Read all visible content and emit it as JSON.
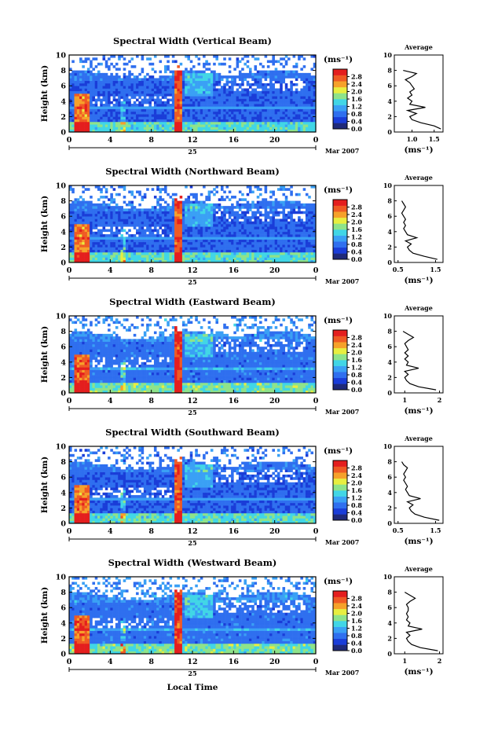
{
  "figure": {
    "xlabel_bottom": "Local Time",
    "date_day": "25",
    "date_month": "Mar 2007",
    "avg_title": "Average",
    "units": "(ms⁻¹)"
  },
  "colorbar": {
    "ticks": [
      "2.8",
      "2.4",
      "2.0",
      "1.6",
      "1.2",
      "0.8",
      "0.4",
      "0.0"
    ],
    "range": [
      0.0,
      3.2
    ],
    "colors": [
      "#1f2a7a",
      "#1a3dd8",
      "#2f6fef",
      "#3aa0f5",
      "#41d6e6",
      "#8ee38a",
      "#e8ee40",
      "#f6a12a",
      "#ef5a24",
      "#e41e1e"
    ]
  },
  "chart_data": [
    {
      "type": "heatmap",
      "title": "Spectral Width (Vertical Beam)",
      "ylabel": "Height (km)",
      "xlim": [
        0,
        24
      ],
      "ylim": [
        0,
        10
      ],
      "xticks": [
        "0",
        "4",
        "8",
        "12",
        "16",
        "20",
        "0"
      ],
      "yticks": [
        "10",
        "8",
        "6",
        "4",
        "2",
        "0"
      ],
      "average": {
        "xticks": [
          "1.0",
          "1.5"
        ],
        "xlim": [
          0.6,
          1.7
        ],
        "profile": [
          [
            1.65,
            0.4
          ],
          [
            1.5,
            0.8
          ],
          [
            1.2,
            1.2
          ],
          [
            1.0,
            1.6
          ],
          [
            0.95,
            2.0
          ],
          [
            1.1,
            2.4
          ],
          [
            0.9,
            2.8
          ],
          [
            1.3,
            3.2
          ],
          [
            0.95,
            3.6
          ],
          [
            1.0,
            4.0
          ],
          [
            0.9,
            4.4
          ],
          [
            1.0,
            4.8
          ],
          [
            0.95,
            5.2
          ],
          [
            1.05,
            5.6
          ],
          [
            1.0,
            6.0
          ],
          [
            0.95,
            6.4
          ],
          [
            0.85,
            6.8
          ],
          [
            1.0,
            7.2
          ],
          [
            1.1,
            7.6
          ],
          [
            0.8,
            8.0
          ]
        ]
      }
    },
    {
      "type": "heatmap",
      "title": "Spectral Width (Northward Beam)",
      "ylabel": "Height (km)",
      "xlim": [
        0,
        24
      ],
      "ylim": [
        0,
        10
      ],
      "xticks": [
        "0",
        "4",
        "8",
        "12",
        "16",
        "20",
        "0"
      ],
      "yticks": [
        "10",
        "8",
        "6",
        "4",
        "2",
        "0"
      ],
      "average": {
        "xticks": [
          "0.5",
          "1.5"
        ],
        "xlim": [
          0.4,
          1.7
        ],
        "profile": [
          [
            1.55,
            0.4
          ],
          [
            1.2,
            0.8
          ],
          [
            0.9,
            1.2
          ],
          [
            0.8,
            1.6
          ],
          [
            0.75,
            2.0
          ],
          [
            0.85,
            2.4
          ],
          [
            0.7,
            2.8
          ],
          [
            1.0,
            3.2
          ],
          [
            0.75,
            3.6
          ],
          [
            0.7,
            4.0
          ],
          [
            0.65,
            4.4
          ],
          [
            0.7,
            4.8
          ],
          [
            0.65,
            5.2
          ],
          [
            0.7,
            5.6
          ],
          [
            0.65,
            6.0
          ],
          [
            0.6,
            6.4
          ],
          [
            0.65,
            6.8
          ],
          [
            0.7,
            7.2
          ],
          [
            0.65,
            7.6
          ],
          [
            0.6,
            8.0
          ]
        ]
      }
    },
    {
      "type": "heatmap",
      "title": "Spectral Width (Eastward Beam)",
      "ylabel": "Height (km)",
      "xlim": [
        0,
        24
      ],
      "ylim": [
        0,
        10
      ],
      "xticks": [
        "0",
        "4",
        "8",
        "12",
        "16",
        "20",
        "0"
      ],
      "yticks": [
        "10",
        "8",
        "6",
        "4",
        "2",
        "0"
      ],
      "average": {
        "xticks": [
          "1",
          "2"
        ],
        "xlim": [
          0.7,
          2.1
        ],
        "profile": [
          [
            1.9,
            0.4
          ],
          [
            1.4,
            0.8
          ],
          [
            1.15,
            1.2
          ],
          [
            1.05,
            1.6
          ],
          [
            1.0,
            2.0
          ],
          [
            1.1,
            2.4
          ],
          [
            1.0,
            2.8
          ],
          [
            1.4,
            3.2
          ],
          [
            1.05,
            3.6
          ],
          [
            1.1,
            4.0
          ],
          [
            1.0,
            4.4
          ],
          [
            1.1,
            4.8
          ],
          [
            1.0,
            5.2
          ],
          [
            1.1,
            5.6
          ],
          [
            1.05,
            6.0
          ],
          [
            1.0,
            6.4
          ],
          [
            1.1,
            6.8
          ],
          [
            1.25,
            7.2
          ],
          [
            1.1,
            7.6
          ],
          [
            0.95,
            8.0
          ]
        ]
      }
    },
    {
      "type": "heatmap",
      "title": "Spectral Width (Southward Beam)",
      "ylabel": "Height (km)",
      "xlim": [
        0,
        24
      ],
      "ylim": [
        0,
        10
      ],
      "xticks": [
        "0",
        "4",
        "8",
        "12",
        "16",
        "20",
        "0"
      ],
      "yticks": [
        "10",
        "8",
        "6",
        "4",
        "2",
        "0"
      ],
      "average": {
        "xticks": [
          "0.5",
          "1.5"
        ],
        "xlim": [
          0.4,
          1.7
        ],
        "profile": [
          [
            1.6,
            0.4
          ],
          [
            1.2,
            0.8
          ],
          [
            0.95,
            1.2
          ],
          [
            0.85,
            1.6
          ],
          [
            0.8,
            2.0
          ],
          [
            0.9,
            2.4
          ],
          [
            0.75,
            2.8
          ],
          [
            1.1,
            3.2
          ],
          [
            0.8,
            3.6
          ],
          [
            0.75,
            4.0
          ],
          [
            0.7,
            4.4
          ],
          [
            0.75,
            4.8
          ],
          [
            0.7,
            5.2
          ],
          [
            0.65,
            5.6
          ],
          [
            0.7,
            6.0
          ],
          [
            0.65,
            6.4
          ],
          [
            0.7,
            6.8
          ],
          [
            0.75,
            7.2
          ],
          [
            0.65,
            7.6
          ],
          [
            0.6,
            8.0
          ]
        ]
      }
    },
    {
      "type": "heatmap",
      "title": "Spectral Width (Westward Beam)",
      "ylabel": "Height (km)",
      "xlim": [
        0,
        24
      ],
      "ylim": [
        0,
        10
      ],
      "xticks": [
        "0",
        "4",
        "8",
        "12",
        "16",
        "20",
        "0"
      ],
      "yticks": [
        "10",
        "8",
        "6",
        "4",
        "2",
        "0"
      ],
      "average": {
        "xticks": [
          "1",
          "2"
        ],
        "xlim": [
          0.7,
          2.1
        ],
        "profile": [
          [
            1.95,
            0.4
          ],
          [
            1.45,
            0.8
          ],
          [
            1.2,
            1.2
          ],
          [
            1.1,
            1.6
          ],
          [
            1.05,
            2.0
          ],
          [
            1.15,
            2.4
          ],
          [
            1.05,
            2.8
          ],
          [
            1.5,
            3.2
          ],
          [
            1.1,
            3.6
          ],
          [
            1.15,
            4.0
          ],
          [
            1.05,
            4.4
          ],
          [
            1.1,
            4.8
          ],
          [
            1.05,
            5.2
          ],
          [
            1.1,
            5.6
          ],
          [
            1.1,
            6.0
          ],
          [
            1.05,
            6.4
          ],
          [
            1.15,
            6.8
          ],
          [
            1.3,
            7.2
          ],
          [
            1.15,
            7.6
          ],
          [
            1.0,
            8.0
          ]
        ]
      }
    }
  ]
}
